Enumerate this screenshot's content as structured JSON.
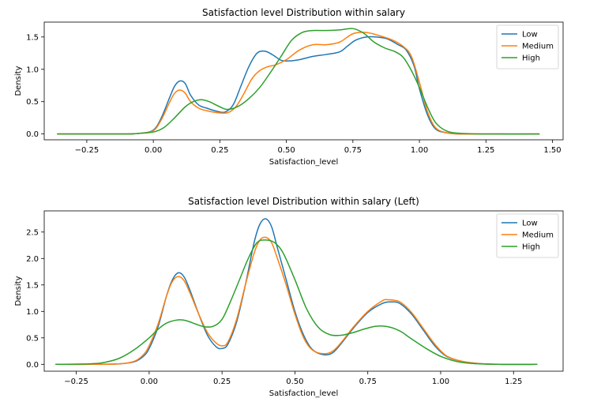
{
  "chart_data": [
    {
      "type": "line",
      "title": "Satisfaction level Distribution within salary",
      "xlabel": "Satisfaction_level",
      "ylabel": "Density",
      "xlim": [
        -0.41,
        1.54
      ],
      "ylim": [
        -0.09,
        1.73
      ],
      "xticks": [
        -0.25,
        0.0,
        0.25,
        0.5,
        0.75,
        1.0,
        1.25,
        1.5
      ],
      "xtick_labels": [
        "−0.25",
        "0.00",
        "0.25",
        "0.50",
        "0.75",
        "1.00",
        "1.25",
        "1.50"
      ],
      "yticks": [
        0.0,
        0.5,
        1.0,
        1.5
      ],
      "ytick_labels": [
        "0.0",
        "0.5",
        "1.0",
        "1.5"
      ],
      "legend_position": "top-right",
      "grid": false,
      "series": [
        {
          "name": "Low",
          "color": "#1f77b4",
          "x": [
            -0.36,
            -0.2,
            -0.1,
            -0.05,
            0.0,
            0.03,
            0.06,
            0.08,
            0.1,
            0.12,
            0.14,
            0.17,
            0.2,
            0.24,
            0.27,
            0.3,
            0.33,
            0.36,
            0.39,
            0.42,
            0.45,
            0.48,
            0.51,
            0.55,
            0.6,
            0.65,
            0.7,
            0.73,
            0.76,
            0.8,
            0.84,
            0.88,
            0.92,
            0.95,
            0.98,
            1.0,
            1.03,
            1.06,
            1.1,
            1.15,
            1.25,
            1.45
          ],
          "y": [
            0,
            0,
            0,
            0.01,
            0.06,
            0.25,
            0.55,
            0.74,
            0.82,
            0.78,
            0.6,
            0.45,
            0.4,
            0.35,
            0.34,
            0.45,
            0.75,
            1.05,
            1.25,
            1.28,
            1.22,
            1.14,
            1.13,
            1.15,
            1.2,
            1.23,
            1.27,
            1.36,
            1.45,
            1.5,
            1.5,
            1.47,
            1.38,
            1.3,
            1.05,
            0.7,
            0.3,
            0.08,
            0.02,
            0,
            0,
            0
          ]
        },
        {
          "name": "Medium",
          "color": "#ff7f0e",
          "x": [
            -0.36,
            -0.2,
            -0.1,
            -0.05,
            0.0,
            0.03,
            0.06,
            0.08,
            0.1,
            0.12,
            0.14,
            0.17,
            0.2,
            0.24,
            0.28,
            0.31,
            0.34,
            0.37,
            0.4,
            0.43,
            0.46,
            0.5,
            0.55,
            0.6,
            0.65,
            0.7,
            0.75,
            0.8,
            0.85,
            0.9,
            0.94,
            0.97,
            1.0,
            1.03,
            1.06,
            1.1,
            1.15,
            1.25,
            1.45
          ],
          "y": [
            0,
            0,
            0,
            0.01,
            0.05,
            0.22,
            0.48,
            0.63,
            0.68,
            0.63,
            0.5,
            0.4,
            0.36,
            0.33,
            0.33,
            0.42,
            0.62,
            0.85,
            0.98,
            1.04,
            1.07,
            1.15,
            1.3,
            1.38,
            1.38,
            1.42,
            1.55,
            1.57,
            1.52,
            1.45,
            1.35,
            1.2,
            0.8,
            0.35,
            0.1,
            0.02,
            0,
            0,
            0
          ]
        },
        {
          "name": "High",
          "color": "#2ca02c",
          "x": [
            -0.36,
            -0.2,
            -0.1,
            -0.05,
            0.0,
            0.04,
            0.08,
            0.12,
            0.15,
            0.18,
            0.21,
            0.25,
            0.28,
            0.32,
            0.36,
            0.4,
            0.44,
            0.48,
            0.52,
            0.56,
            0.6,
            0.65,
            0.7,
            0.75,
            0.79,
            0.83,
            0.87,
            0.91,
            0.94,
            0.97,
            1.0,
            1.03,
            1.06,
            1.1,
            1.15,
            1.25,
            1.45
          ],
          "y": [
            0,
            0,
            0,
            0.01,
            0.03,
            0.1,
            0.25,
            0.42,
            0.5,
            0.53,
            0.5,
            0.42,
            0.38,
            0.43,
            0.55,
            0.72,
            0.95,
            1.2,
            1.45,
            1.57,
            1.6,
            1.6,
            1.61,
            1.63,
            1.56,
            1.42,
            1.33,
            1.27,
            1.18,
            0.98,
            0.72,
            0.42,
            0.18,
            0.05,
            0.01,
            0,
            0
          ]
        }
      ]
    },
    {
      "type": "line",
      "title": "Satisfaction level Distribution within salary (Left)",
      "xlabel": "Satisfaction_level",
      "ylabel": "Density",
      "xlim": [
        -0.36,
        1.42
      ],
      "ylim": [
        -0.13,
        2.9
      ],
      "xticks": [
        -0.25,
        0.0,
        0.25,
        0.5,
        0.75,
        1.0,
        1.25
      ],
      "xtick_labels": [
        "−0.25",
        "0.00",
        "0.25",
        "0.50",
        "0.75",
        "1.00",
        "1.25"
      ],
      "yticks": [
        0.0,
        0.5,
        1.0,
        1.5,
        2.0,
        2.5
      ],
      "ytick_labels": [
        "0.0",
        "0.5",
        "1.0",
        "1.5",
        "2.0",
        "2.5"
      ],
      "legend_position": "top-right",
      "grid": false,
      "series": [
        {
          "name": "Low",
          "color": "#1f77b4",
          "x": [
            -0.32,
            -0.2,
            -0.1,
            -0.05,
            -0.02,
            0.0,
            0.03,
            0.06,
            0.08,
            0.1,
            0.12,
            0.14,
            0.17,
            0.2,
            0.23,
            0.25,
            0.27,
            0.3,
            0.33,
            0.36,
            0.38,
            0.4,
            0.42,
            0.44,
            0.47,
            0.5,
            0.53,
            0.56,
            0.6,
            0.63,
            0.66,
            0.7,
            0.75,
            0.8,
            0.83,
            0.86,
            0.9,
            0.94,
            0.98,
            1.02,
            1.07,
            1.12,
            1.2,
            1.33
          ],
          "y": [
            0,
            0,
            0.01,
            0.05,
            0.15,
            0.3,
            0.7,
            1.3,
            1.6,
            1.73,
            1.65,
            1.4,
            0.95,
            0.55,
            0.33,
            0.3,
            0.38,
            0.8,
            1.5,
            2.3,
            2.65,
            2.75,
            2.6,
            2.2,
            1.6,
            1.0,
            0.55,
            0.28,
            0.18,
            0.22,
            0.4,
            0.68,
            0.98,
            1.15,
            1.18,
            1.15,
            0.95,
            0.65,
            0.35,
            0.15,
            0.06,
            0.02,
            0,
            0
          ]
        },
        {
          "name": "Medium",
          "color": "#ff7f0e",
          "x": [
            -0.32,
            -0.2,
            -0.1,
            -0.05,
            -0.02,
            0.0,
            0.03,
            0.06,
            0.08,
            0.1,
            0.12,
            0.14,
            0.17,
            0.2,
            0.23,
            0.25,
            0.27,
            0.3,
            0.33,
            0.36,
            0.38,
            0.4,
            0.42,
            0.44,
            0.47,
            0.5,
            0.53,
            0.56,
            0.6,
            0.63,
            0.66,
            0.7,
            0.75,
            0.8,
            0.82,
            0.86,
            0.9,
            0.94,
            0.98,
            1.02,
            1.07,
            1.12,
            1.2,
            1.33
          ],
          "y": [
            0,
            0,
            0.01,
            0.06,
            0.18,
            0.35,
            0.75,
            1.3,
            1.57,
            1.66,
            1.58,
            1.35,
            0.95,
            0.6,
            0.4,
            0.35,
            0.42,
            0.85,
            1.5,
            2.1,
            2.35,
            2.4,
            2.3,
            2.0,
            1.5,
            0.95,
            0.5,
            0.27,
            0.2,
            0.25,
            0.42,
            0.7,
            1.0,
            1.2,
            1.22,
            1.18,
            0.98,
            0.68,
            0.38,
            0.16,
            0.06,
            0.02,
            0,
            0
          ]
        },
        {
          "name": "High",
          "color": "#2ca02c",
          "x": [
            -0.32,
            -0.2,
            -0.15,
            -0.1,
            -0.05,
            0.0,
            0.03,
            0.06,
            0.1,
            0.13,
            0.16,
            0.19,
            0.22,
            0.25,
            0.28,
            0.31,
            0.34,
            0.37,
            0.4,
            0.43,
            0.46,
            0.5,
            0.54,
            0.58,
            0.62,
            0.66,
            0.7,
            0.74,
            0.78,
            0.82,
            0.86,
            0.9,
            0.95,
            1.0,
            1.05,
            1.1,
            1.2,
            1.33
          ],
          "y": [
            0,
            0.01,
            0.04,
            0.12,
            0.28,
            0.5,
            0.66,
            0.78,
            0.84,
            0.82,
            0.76,
            0.71,
            0.72,
            0.85,
            1.2,
            1.6,
            2.0,
            2.3,
            2.35,
            2.3,
            2.1,
            1.6,
            1.05,
            0.7,
            0.56,
            0.55,
            0.6,
            0.67,
            0.72,
            0.71,
            0.63,
            0.48,
            0.3,
            0.15,
            0.06,
            0.02,
            0,
            0
          ]
        }
      ]
    }
  ]
}
